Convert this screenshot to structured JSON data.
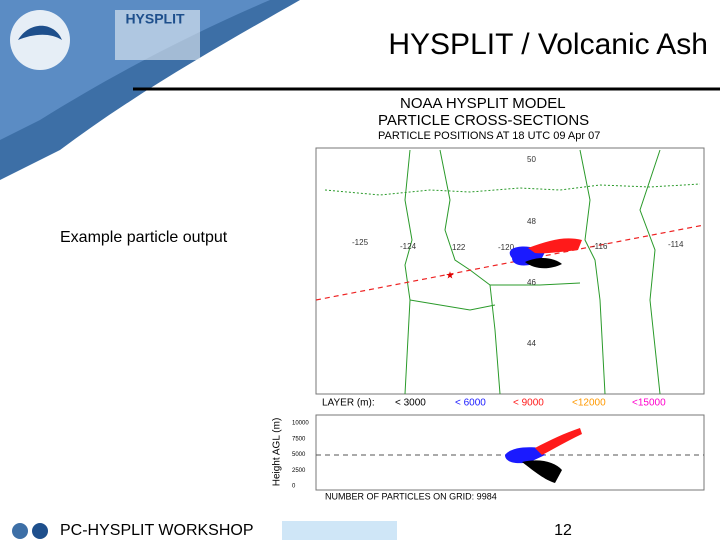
{
  "header": {
    "logo_text": "HYSPLIT",
    "title": "HYSPLIT / Volcanic Ash"
  },
  "caption": "Example particle output",
  "figure": {
    "title_lines": [
      "NOAA HYSPLIT MODEL",
      "PARTICLE CROSS-SECTIONS",
      "PARTICLE POSITIONS AT 18 UTC 09 Apr 07"
    ],
    "latitude_labels": [
      "50",
      "48",
      "46",
      "44"
    ],
    "longitude_labels": [
      "-125",
      "-124",
      "122",
      "-120",
      "-116",
      "-114"
    ],
    "legend": {
      "label": "LAYER (m):",
      "entries": [
        {
          "text": "< 3000",
          "color": "#000000"
        },
        {
          "text": "< 6000",
          "color": "#1a1aff"
        },
        {
          "text": "< 9000",
          "color": "#ff1a1a"
        },
        {
          "text": "<12000",
          "color": "#ff9900"
        },
        {
          "text": "<15000",
          "color": "#ff00cc"
        }
      ]
    },
    "cross_section": {
      "y_label": "Height AGL (m)",
      "y_ticks": [
        "10000",
        "7500",
        "5000",
        "2500",
        "0"
      ]
    },
    "particle_count": "NUMBER OF PARTICLES ON GRID:  9984"
  },
  "footer": {
    "text": "PC-HYSPLIT WORKSHOP",
    "page": "12"
  }
}
